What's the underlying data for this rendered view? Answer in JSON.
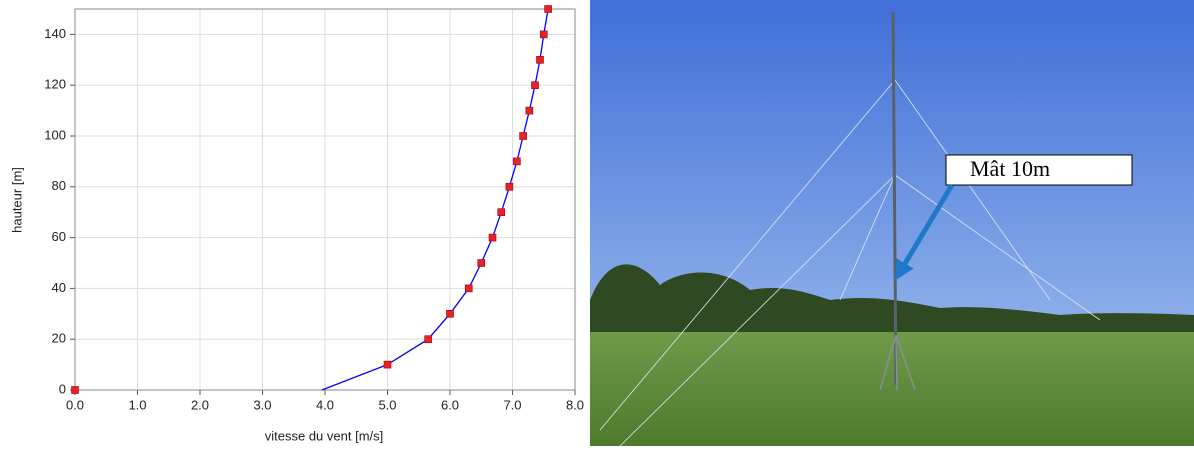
{
  "chart_data": {
    "type": "line",
    "x_label": "vitesse du vent [m/s]",
    "y_label": "hauteur [m]",
    "xlim": [
      0,
      8
    ],
    "ylim": [
      0,
      150
    ],
    "xticks": [
      {
        "value": 0,
        "label": "0.0"
      },
      {
        "value": 1,
        "label": "1.0"
      },
      {
        "value": 2,
        "label": "2.0"
      },
      {
        "value": 3,
        "label": "3.0"
      },
      {
        "value": 4,
        "label": "4.0"
      },
      {
        "value": 5,
        "label": "5.0"
      },
      {
        "value": 6,
        "label": "6.0"
      },
      {
        "value": 7,
        "label": "7.0"
      },
      {
        "value": 8,
        "label": "8.0"
      }
    ],
    "yticks": [
      0,
      20,
      40,
      60,
      80,
      100,
      120,
      140
    ],
    "grid": true,
    "series": [
      {
        "color": "#0000ff",
        "marker": "none",
        "x": [
          3.95,
          5.0,
          5.65,
          6.0,
          6.3,
          6.5,
          6.68,
          6.82,
          6.95,
          7.07,
          7.17,
          7.27,
          7.36,
          7.44,
          7.5,
          7.57
        ],
        "values": [
          0,
          10,
          20,
          30,
          40,
          50,
          60,
          70,
          80,
          90,
          100,
          110,
          120,
          130,
          140,
          150
        ]
      },
      {
        "color": "#e8202a",
        "marker": "square",
        "x": [
          0,
          5.0,
          5.65,
          6.0,
          6.3,
          6.5,
          6.68,
          6.82,
          6.95,
          7.07,
          7.17,
          7.27,
          7.36,
          7.44,
          7.5,
          7.57
        ],
        "values": [
          0,
          10,
          20,
          30,
          40,
          50,
          60,
          70,
          80,
          90,
          100,
          110,
          120,
          130,
          140,
          150
        ]
      }
    ]
  },
  "photo": {
    "callout": "Mât 10m"
  }
}
